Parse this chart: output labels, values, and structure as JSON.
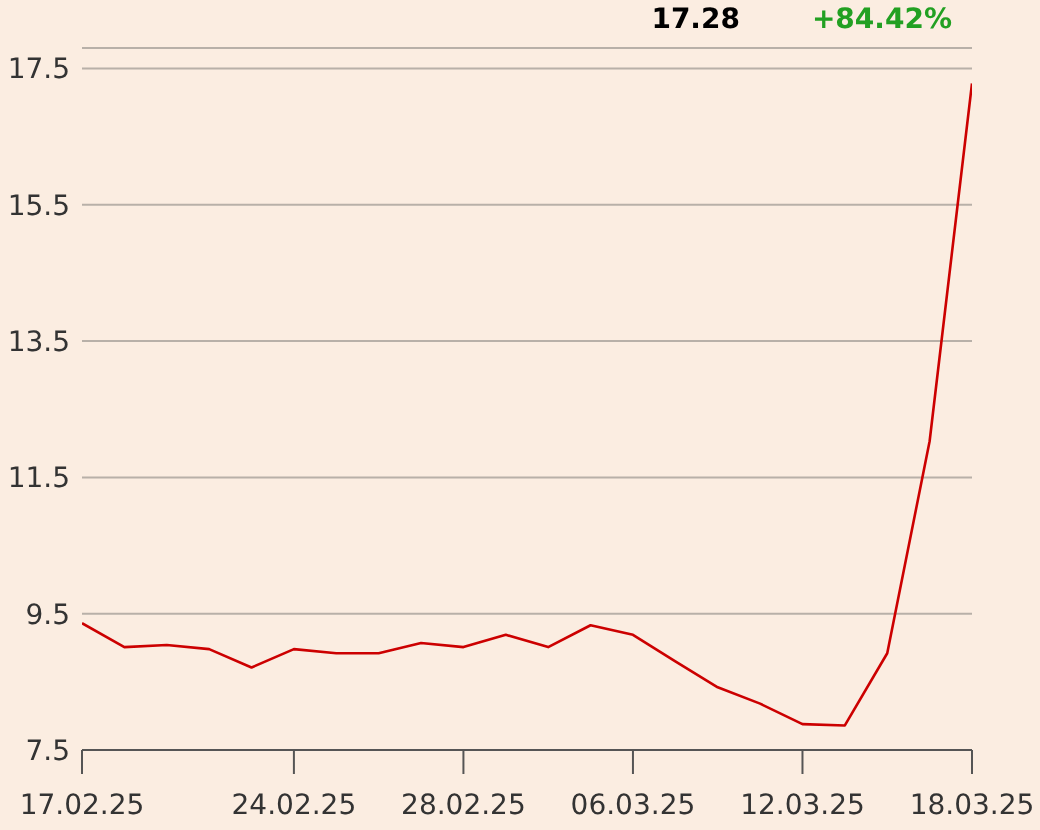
{
  "chart_data": {
    "type": "line",
    "annotations": [
      "17.28",
      "+84.42%"
    ],
    "categories": [
      "17.02.25",
      null,
      null,
      null,
      null,
      "24.02.25",
      null,
      null,
      null,
      "28.02.25",
      null,
      null,
      null,
      "06.03.25",
      null,
      null,
      null,
      "12.03.25",
      null,
      null,
      null,
      "18.03.25"
    ],
    "series": [
      {
        "color": "#cc0000",
        "values": [
          9.36,
          9.01,
          9.04,
          8.98,
          8.71,
          8.98,
          8.92,
          8.92,
          9.07,
          9.01,
          9.19,
          9.01,
          9.33,
          9.19,
          8.8,
          8.42,
          8.18,
          7.88,
          7.86,
          8.92,
          12.03,
          17.28
        ]
      }
    ],
    "ylim": [
      7.5,
      17.8
    ],
    "yticks": [
      7.5,
      9.5,
      11.5,
      13.5,
      15.5,
      17.5
    ],
    "grid": "y",
    "marker": "none",
    "line_style": "solid"
  }
}
